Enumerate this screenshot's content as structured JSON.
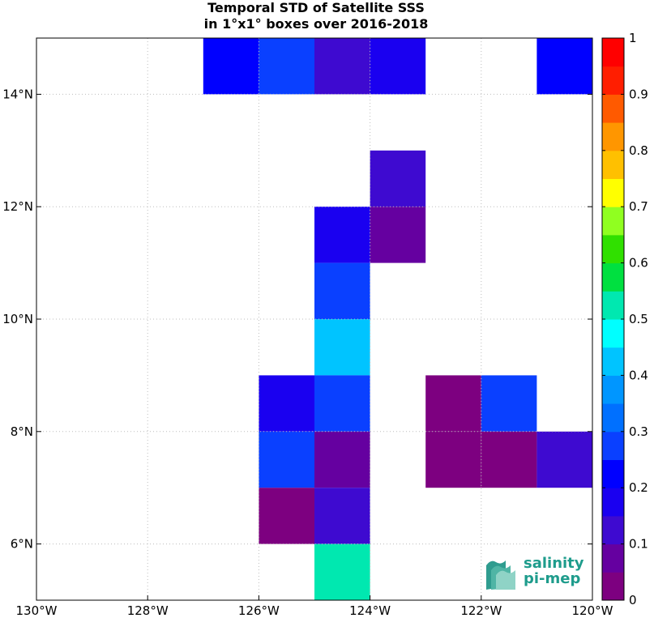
{
  "title_line1": "Temporal STD of Satellite SSS",
  "title_line2": "in 1°x1° boxes over 2016-2018",
  "logo": {
    "line1": "salinity",
    "line2": "pi-mep"
  },
  "chart_data": {
    "type": "heatmap",
    "x_range": [
      -130,
      -120
    ],
    "y_range": [
      5,
      15
    ],
    "x_ticks": [
      {
        "value": -130,
        "label": "130°W"
      },
      {
        "value": -128,
        "label": "128°W"
      },
      {
        "value": -126,
        "label": "126°W"
      },
      {
        "value": -124,
        "label": "124°W"
      },
      {
        "value": -122,
        "label": "122°W"
      },
      {
        "value": -120,
        "label": "120°W"
      }
    ],
    "y_ticks": [
      {
        "value": 6,
        "label": "6°N"
      },
      {
        "value": 8,
        "label": "8°N"
      },
      {
        "value": 10,
        "label": "10°N"
      },
      {
        "value": 12,
        "label": "12°N"
      },
      {
        "value": 14,
        "label": "14°N"
      }
    ],
    "grid": true,
    "colorbar": {
      "min": 0,
      "max": 1,
      "levels": 20,
      "position": "right",
      "tick_labels": [
        "0",
        "0.1",
        "0.2",
        "0.3",
        "0.4",
        "0.5",
        "0.6",
        "0.7",
        "0.8",
        "0.9",
        "1"
      ],
      "colors": [
        "#7d0080",
        "#6500a0",
        "#3e0ad0",
        "#1a00f0",
        "#0000ff",
        "#0a40ff",
        "#0070ff",
        "#0096ff",
        "#00c4ff",
        "#00ffff",
        "#00e8b0",
        "#00e040",
        "#30e000",
        "#90ff20",
        "#ffff00",
        "#ffc000",
        "#ff9600",
        "#ff5a00",
        "#ff1e00",
        "#ff0000"
      ]
    },
    "cells": [
      {
        "lon": -127,
        "lat": 14,
        "value": 0.23
      },
      {
        "lon": -126,
        "lat": 14,
        "value": 0.28
      },
      {
        "lon": -125,
        "lat": 14,
        "value": 0.12
      },
      {
        "lon": -124,
        "lat": 14,
        "value": 0.19
      },
      {
        "lon": -121,
        "lat": 14,
        "value": 0.23
      },
      {
        "lon": -124,
        "lat": 12,
        "value": 0.12
      },
      {
        "lon": -125,
        "lat": 11,
        "value": 0.19
      },
      {
        "lon": -124,
        "lat": 11,
        "value": 0.08
      },
      {
        "lon": -125,
        "lat": 10,
        "value": 0.28
      },
      {
        "lon": -125,
        "lat": 9,
        "value": 0.43
      },
      {
        "lon": -126,
        "lat": 8,
        "value": 0.19
      },
      {
        "lon": -125,
        "lat": 8,
        "value": 0.28
      },
      {
        "lon": -123,
        "lat": 8,
        "value": 0.03
      },
      {
        "lon": -122,
        "lat": 8,
        "value": 0.28
      },
      {
        "lon": -126,
        "lat": 7,
        "value": 0.28
      },
      {
        "lon": -125,
        "lat": 7,
        "value": 0.08
      },
      {
        "lon": -123,
        "lat": 7,
        "value": 0.03
      },
      {
        "lon": -122,
        "lat": 7,
        "value": 0.03
      },
      {
        "lon": -121,
        "lat": 7,
        "value": 0.12
      },
      {
        "lon": -126,
        "lat": 6,
        "value": 0.03
      },
      {
        "lon": -125,
        "lat": 6,
        "value": 0.12
      },
      {
        "lon": -125,
        "lat": 5,
        "value": 0.53
      }
    ]
  }
}
